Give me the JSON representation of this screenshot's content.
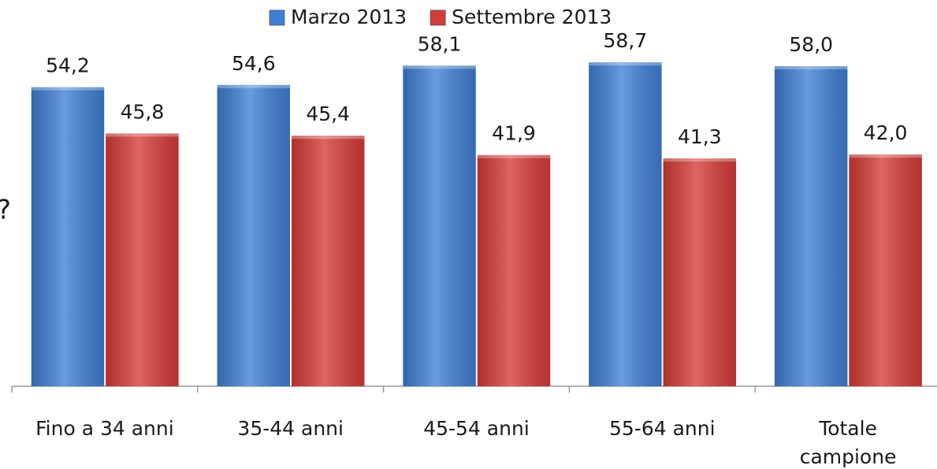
{
  "chart_data": {
    "type": "bar",
    "annotation": "?",
    "categories": [
      "Fino a 34 anni",
      "35-44 anni",
      "45-54 anni",
      "55-64 anni",
      "Totale\ncampione"
    ],
    "series": [
      {
        "name": "Marzo 2013",
        "color": "#3f7fd4",
        "values": [
          54.2,
          54.6,
          58.1,
          58.7,
          58.0
        ],
        "value_labels": [
          "54,2",
          "54,6",
          "58,1",
          "58,7",
          "58,0"
        ]
      },
      {
        "name": "Settembre 2013",
        "color": "#d63b37",
        "values": [
          45.8,
          45.4,
          41.9,
          41.3,
          42.0
        ],
        "value_labels": [
          "45,8",
          "45,4",
          "41,9",
          "41,3",
          "42,0"
        ]
      }
    ],
    "ylim": [
      0,
      70
    ],
    "legend": "top"
  }
}
